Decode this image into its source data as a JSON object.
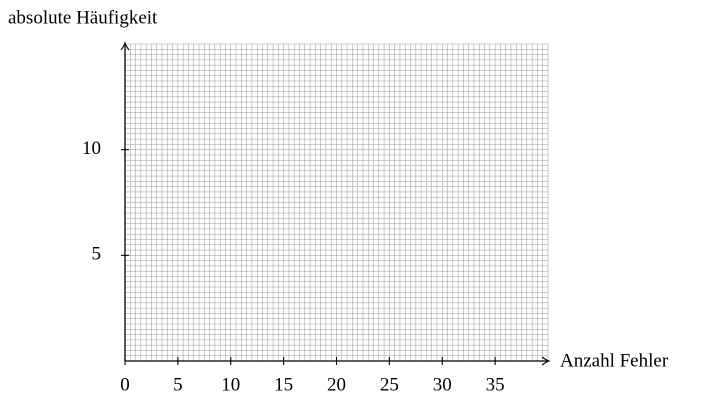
{
  "chart_data": {
    "type": "line",
    "ylabel": "absolute Häufigkeit",
    "xlabel": "Anzahl Fehler",
    "xlim": [
      0,
      40
    ],
    "xticks": [
      0,
      5,
      10,
      15,
      20,
      25,
      30,
      35
    ],
    "ylim": [
      0,
      15
    ],
    "yticks": [
      5,
      10
    ],
    "grid": true
  }
}
